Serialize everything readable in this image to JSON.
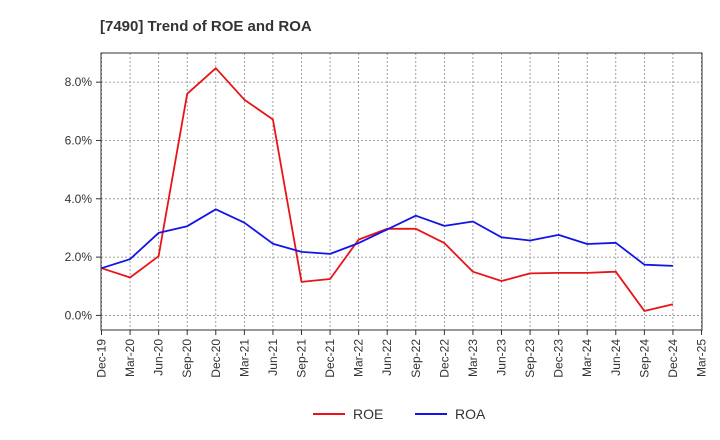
{
  "chart_data": {
    "type": "line",
    "title": "[7490]  Trend of ROE and ROA",
    "xlabel": "",
    "ylabel": "",
    "categories": [
      "Dec-19",
      "Mar-20",
      "Jun-20",
      "Sep-20",
      "Dec-20",
      "Mar-21",
      "Jun-21",
      "Sep-21",
      "Dec-21",
      "Mar-22",
      "Jun-22",
      "Sep-22",
      "Dec-22",
      "Mar-23",
      "Jun-23",
      "Sep-23",
      "Dec-23",
      "Mar-24",
      "Jun-24",
      "Sep-24",
      "Dec-24",
      "Mar-25"
    ],
    "ylim": [
      -0.5,
      9.0
    ],
    "yticks": [
      0,
      2,
      4,
      6,
      8
    ],
    "ytick_labels": [
      "0.0%",
      "2.0%",
      "4.0%",
      "6.0%",
      "8.0%"
    ],
    "grid": true,
    "legend_position": "bottom",
    "series": [
      {
        "name": "ROE",
        "color": "#e8141a",
        "values": [
          1.62,
          1.3,
          2.03,
          7.6,
          8.48,
          7.4,
          6.72,
          1.15,
          1.25,
          2.6,
          2.97,
          2.97,
          2.48,
          1.5,
          1.18,
          1.44,
          1.46,
          1.46,
          1.5,
          0.15,
          0.38,
          null
        ]
      },
      {
        "name": "ROA",
        "color": "#1414e8",
        "values": [
          1.62,
          1.93,
          2.83,
          3.06,
          3.64,
          3.18,
          2.46,
          2.18,
          2.11,
          2.48,
          2.95,
          3.42,
          3.07,
          3.22,
          2.68,
          2.57,
          2.76,
          2.45,
          2.49,
          1.74,
          1.7,
          null
        ]
      }
    ]
  }
}
